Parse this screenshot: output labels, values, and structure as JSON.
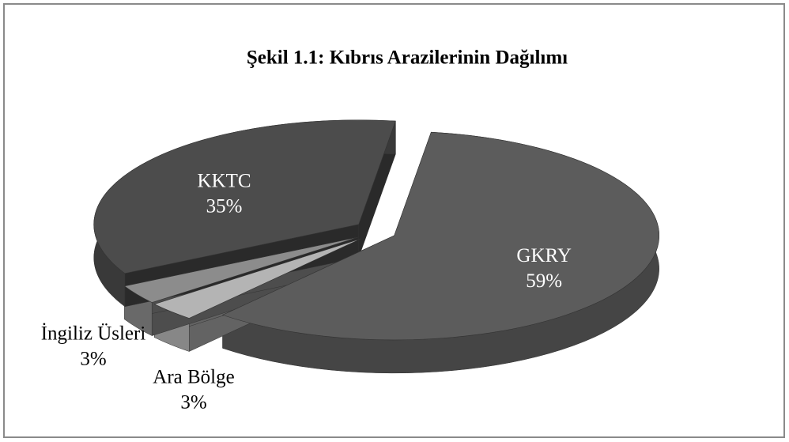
{
  "chart_data": {
    "type": "pie3d",
    "title": "Şekil 1.1: Kıbrıs Arazilerinin Dağılımı",
    "categories": [
      "GKRY",
      "Ara Bölge",
      "İngiliz Üsleri",
      "KKTC"
    ],
    "values": [
      59,
      3,
      3,
      35
    ],
    "value_labels": [
      "59%",
      "3%",
      "3%",
      "35%"
    ],
    "colors": [
      "#5c5c5c",
      "#b4b4b4",
      "#8c8c8c",
      "#4c4c4c"
    ]
  }
}
